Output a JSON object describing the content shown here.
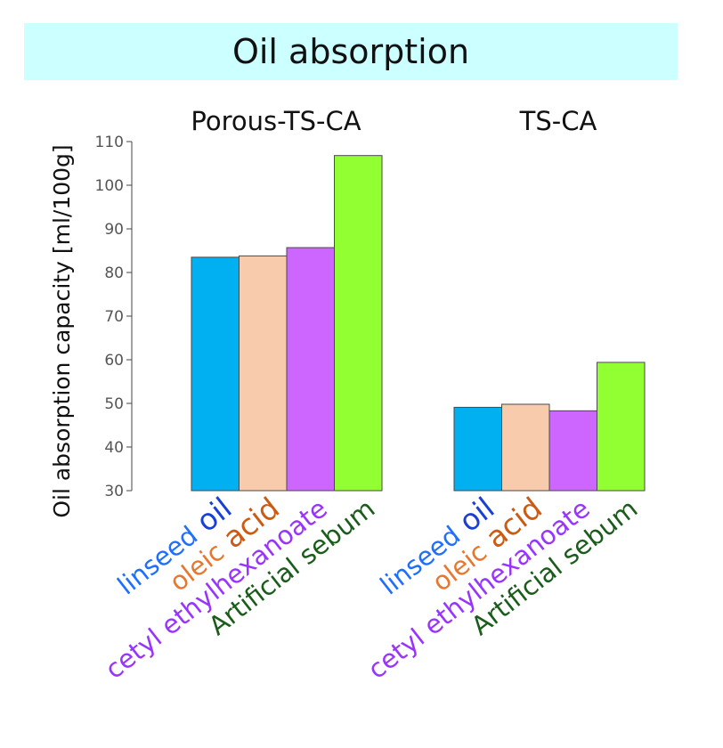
{
  "title": "Oil absorption",
  "chart_data": [
    {
      "type": "bar",
      "title": "Porous-TS-CA",
      "ylabel": "Oil absorption capacity [ml/100g]",
      "ylim": [
        30,
        110
      ],
      "yticks": [
        30,
        40,
        50,
        60,
        70,
        80,
        90,
        100,
        110
      ],
      "categories": [
        {
          "text": "linseed",
          "accent": "oil"
        },
        {
          "text": "oleic",
          "accent": "acid"
        },
        {
          "text": "cetyl ethylhexanoate",
          "accent": ""
        },
        {
          "text": "Artificial sebum",
          "accent": ""
        }
      ],
      "values": [
        83.5,
        83.8,
        85.7,
        106.8
      ],
      "colors": [
        "#00b0f0",
        "#f8cbad",
        "#cc66ff",
        "#92ff33"
      ]
    },
    {
      "type": "bar",
      "title": "TS-CA",
      "ylim": [
        30,
        110
      ],
      "categories": [
        {
          "text": "linseed",
          "accent": "oil"
        },
        {
          "text": "oleic",
          "accent": "acid"
        },
        {
          "text": "cetyl ethylhexanoate",
          "accent": ""
        },
        {
          "text": "Artificial sebum",
          "accent": ""
        }
      ],
      "values": [
        49.1,
        49.8,
        48.3,
        59.4
      ],
      "colors": [
        "#00b0f0",
        "#f8cbad",
        "#cc66ff",
        "#92ff33"
      ]
    }
  ],
  "label_colors": {
    "linseed": "#1f6fff",
    "oil": "#1a3fd6",
    "oleic": "#e8772e",
    "acid": "#cc5a10",
    "cetyl ethylhexanoate": "#9933ff",
    "Artificial sebum": "#1a5c1a"
  }
}
